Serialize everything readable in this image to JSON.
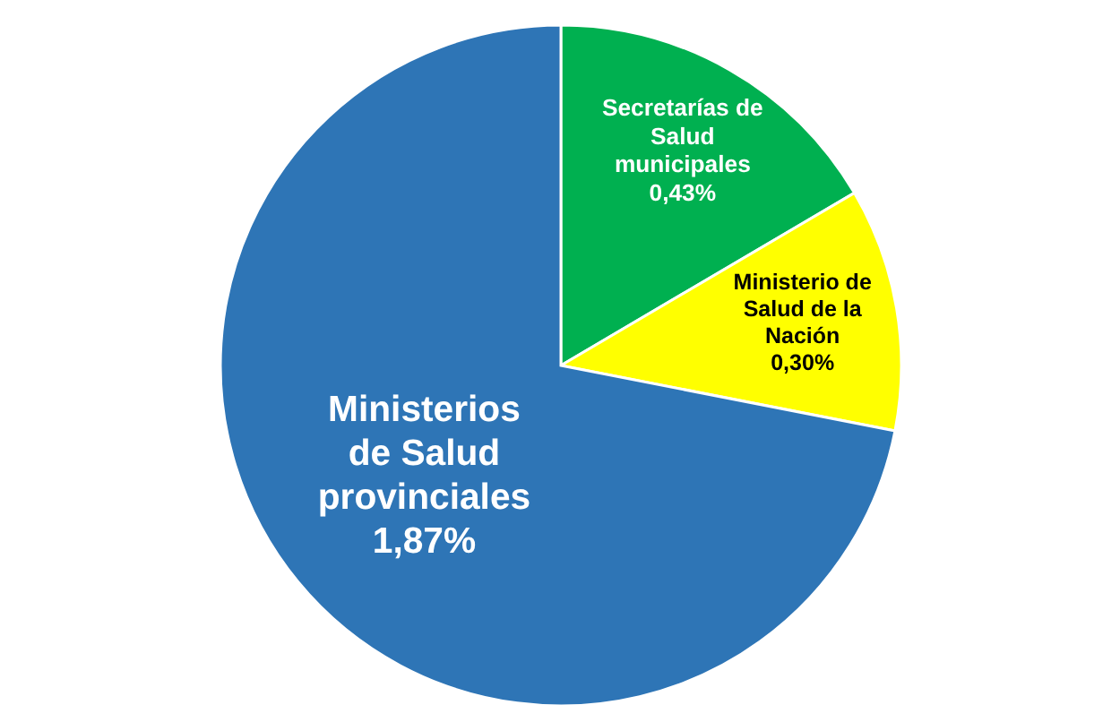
{
  "chart_data": {
    "type": "pie",
    "categories": [
      "Secretarías de\nSalud\nmunicipales",
      "Ministerio de\nSalud de la\nNación",
      "Ministerios\nde Salud\nprovinciales"
    ],
    "values": [
      0.43,
      0.3,
      1.87
    ],
    "value_labels": [
      "0,43%",
      "0,30%",
      "1,87%"
    ],
    "colors": [
      "#00b050",
      "#ffff00",
      "#2e75b6"
    ]
  }
}
